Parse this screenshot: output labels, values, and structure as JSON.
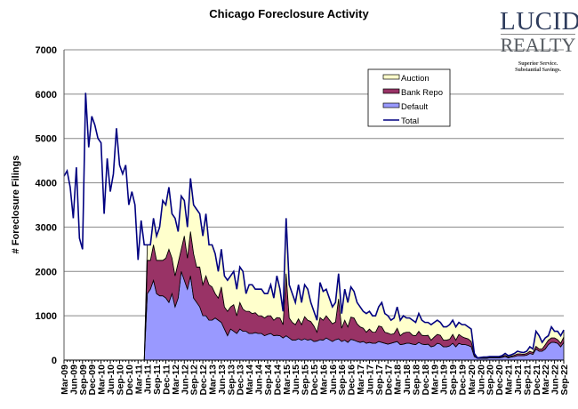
{
  "chart_data": {
    "type": "area",
    "stacked": true,
    "title": "Chicago Foreclosure Activity",
    "ylabel": "# Foreclosure Filings",
    "xlabel": "",
    "ylim": [
      0,
      7000
    ],
    "yticks": [
      0,
      1000,
      2000,
      3000,
      4000,
      5000,
      6000,
      7000
    ],
    "grid": true,
    "legend_position": "top-right",
    "x_tick_labels": [
      "Mar-09",
      "Jun-09",
      "Sep-09",
      "Dec-09",
      "Mar-10",
      "Jun-10",
      "Sep-10",
      "Dec-10",
      "Mar-11",
      "Jun-11",
      "Sep-11",
      "Dec-11",
      "Mar-12",
      "Jun-12",
      "Sep-12",
      "Dec-12",
      "Mar-13",
      "Jun-13",
      "Sep-13",
      "Dec-13",
      "Mar-14",
      "Jun-14",
      "Sep-14",
      "Dec-14",
      "Mar-15",
      "Jun-15",
      "Sep-15",
      "Dec-15",
      "Mar-16",
      "Jun-16",
      "Sep-16",
      "Dec-16",
      "Mar-17",
      "Jun-17",
      "Sep-17",
      "Dec-17",
      "Mar-18",
      "Jun-18",
      "Sep-18",
      "Dec-18",
      "Mar-19",
      "Jun-19",
      "Sep-19",
      "Dec-19",
      "Mar-20",
      "Jun-20",
      "Sep-20",
      "Dec-20",
      "Mar-21",
      "Jun-21",
      "Sep-21",
      "Dec-21",
      "Mar-22",
      "Jun-22",
      "Sep-22"
    ],
    "x": [
      "Mar-09",
      "Apr-09",
      "May-09",
      "Jun-09",
      "Jul-09",
      "Aug-09",
      "Sep-09",
      "Oct-09",
      "Nov-09",
      "Dec-09",
      "Jan-10",
      "Feb-10",
      "Mar-10",
      "Apr-10",
      "May-10",
      "Jun-10",
      "Jul-10",
      "Aug-10",
      "Sep-10",
      "Oct-10",
      "Nov-10",
      "Dec-10",
      "Jan-11",
      "Feb-11",
      "Mar-11",
      "Apr-11",
      "May-11",
      "Jun-11",
      "Jul-11",
      "Aug-11",
      "Sep-11",
      "Oct-11",
      "Nov-11",
      "Dec-11",
      "Jan-12",
      "Feb-12",
      "Mar-12",
      "Apr-12",
      "May-12",
      "Jun-12",
      "Jul-12",
      "Aug-12",
      "Sep-12",
      "Oct-12",
      "Nov-12",
      "Dec-12",
      "Jan-13",
      "Feb-13",
      "Mar-13",
      "Apr-13",
      "May-13",
      "Jun-13",
      "Jul-13",
      "Aug-13",
      "Sep-13",
      "Oct-13",
      "Nov-13",
      "Dec-13",
      "Jan-14",
      "Feb-14",
      "Mar-14",
      "Apr-14",
      "May-14",
      "Jun-14",
      "Jul-14",
      "Aug-14",
      "Sep-14",
      "Oct-14",
      "Nov-14",
      "Dec-14",
      "Jan-15",
      "Feb-15",
      "Mar-15",
      "Apr-15",
      "May-15",
      "Jun-15",
      "Jul-15",
      "Aug-15",
      "Sep-15",
      "Oct-15",
      "Nov-15",
      "Dec-15",
      "Jan-16",
      "Feb-16",
      "Mar-16",
      "Apr-16",
      "May-16",
      "Jun-16",
      "Jul-16",
      "Aug-16",
      "Sep-16",
      "Oct-16",
      "Nov-16",
      "Dec-16",
      "Jan-17",
      "Feb-17",
      "Mar-17",
      "Apr-17",
      "May-17",
      "Jun-17",
      "Jul-17",
      "Aug-17",
      "Sep-17",
      "Oct-17",
      "Nov-17",
      "Dec-17",
      "Jan-18",
      "Feb-18",
      "Mar-18",
      "Apr-18",
      "May-18",
      "Jun-18",
      "Jul-18",
      "Aug-18",
      "Sep-18",
      "Oct-18",
      "Nov-18",
      "Dec-18",
      "Jan-19",
      "Feb-19",
      "Mar-19",
      "Apr-19",
      "May-19",
      "Jun-19",
      "Jul-19",
      "Aug-19",
      "Sep-19",
      "Oct-19",
      "Nov-19",
      "Dec-19",
      "Jan-20",
      "Feb-20",
      "Mar-20",
      "Apr-20",
      "May-20",
      "Jun-20",
      "Jul-20",
      "Aug-20",
      "Sep-20",
      "Oct-20",
      "Nov-20",
      "Dec-20",
      "Jan-21",
      "Feb-21",
      "Mar-21",
      "Apr-21",
      "May-21",
      "Jun-21",
      "Jul-21",
      "Aug-21",
      "Sep-21",
      "Oct-21",
      "Nov-21",
      "Dec-21",
      "Jan-22",
      "Feb-22",
      "Mar-22",
      "Apr-22",
      "May-22",
      "Jun-22",
      "Jul-22",
      "Aug-22",
      "Sep-22"
    ],
    "series": [
      {
        "name": "Default",
        "kind": "area",
        "color": "#9999ff",
        "values": [
          0,
          0,
          0,
          0,
          0,
          0,
          0,
          0,
          0,
          0,
          0,
          0,
          0,
          0,
          0,
          0,
          0,
          0,
          0,
          0,
          0,
          0,
          0,
          0,
          0,
          0,
          0,
          1500,
          1600,
          1800,
          1500,
          1450,
          1450,
          1400,
          1300,
          1500,
          1200,
          1400,
          2000,
          1800,
          1600,
          1900,
          1400,
          1300,
          1200,
          1000,
          1000,
          900,
          900,
          950,
          900,
          850,
          700,
          550,
          700,
          650,
          600,
          700,
          650,
          650,
          600,
          600,
          620,
          600,
          600,
          550,
          580,
          600,
          550,
          560,
          550,
          500,
          550,
          500,
          450,
          450,
          480,
          450,
          480,
          450,
          470,
          420,
          430,
          460,
          450,
          500,
          460,
          420,
          460,
          480,
          420,
          450,
          400,
          470,
          450,
          420,
          400,
          420,
          380,
          400,
          380,
          380,
          420,
          400,
          380,
          360,
          380,
          400,
          420,
          350,
          360,
          380,
          380,
          360,
          350,
          400,
          360,
          350,
          360,
          300,
          320,
          380,
          360,
          300,
          300,
          320,
          380,
          300,
          380,
          350,
          350,
          330,
          300,
          80,
          40,
          40,
          40,
          40,
          50,
          50,
          50,
          50,
          60,
          80,
          50,
          70,
          80,
          100,
          100,
          100,
          110,
          150,
          130,
          250,
          200,
          200,
          250,
          350,
          400,
          400,
          380,
          300,
          400
        ]
      },
      {
        "name": "Bank Repo",
        "kind": "area",
        "color": "#993366",
        "values": [
          0,
          0,
          0,
          0,
          0,
          0,
          0,
          0,
          0,
          0,
          0,
          0,
          0,
          0,
          0,
          0,
          0,
          0,
          0,
          0,
          0,
          0,
          0,
          0,
          0,
          0,
          0,
          750,
          650,
          800,
          750,
          800,
          800,
          900,
          1200,
          800,
          700,
          800,
          500,
          1000,
          700,
          1000,
          1000,
          800,
          900,
          700,
          900,
          800,
          750,
          550,
          500,
          800,
          500,
          550,
          500,
          600,
          400,
          600,
          500,
          450,
          500,
          450,
          450,
          400,
          400,
          400,
          420,
          400,
          350,
          400,
          400,
          300,
          1400,
          450,
          400,
          350,
          450,
          350,
          500,
          450,
          400,
          350,
          200,
          500,
          450,
          500,
          450,
          400,
          400,
          900,
          300,
          450,
          350,
          500,
          500,
          400,
          350,
          300,
          250,
          300,
          250,
          250,
          350,
          350,
          250,
          250,
          200,
          200,
          300,
          200,
          250,
          250,
          250,
          200,
          200,
          250,
          200,
          200,
          200,
          150,
          200,
          200,
          200,
          150,
          150,
          150,
          200,
          150,
          200,
          180,
          150,
          150,
          120,
          40,
          5,
          10,
          15,
          15,
          15,
          15,
          15,
          15,
          20,
          30,
          20,
          20,
          30,
          40,
          40,
          30,
          40,
          50,
          40,
          60,
          50,
          50,
          100,
          100,
          100,
          100,
          80,
          80,
          120
        ]
      },
      {
        "name": "Auction",
        "kind": "area",
        "color": "#ffffcc",
        "values": [
          0,
          0,
          0,
          0,
          0,
          0,
          0,
          0,
          0,
          0,
          0,
          0,
          0,
          0,
          0,
          0,
          0,
          0,
          0,
          0,
          0,
          0,
          0,
          0,
          0,
          0,
          0,
          350,
          350,
          600,
          550,
          750,
          1350,
          1200,
          1400,
          1000,
          1300,
          700,
          1200,
          800,
          700,
          1200,
          1100,
          1300,
          1200,
          1100,
          1400,
          900,
          950,
          900,
          600,
          850,
          700,
          700,
          700,
          750,
          600,
          800,
          850,
          400,
          600,
          650,
          530,
          600,
          600,
          550,
          500,
          700,
          500,
          940,
          650,
          300,
          1250,
          750,
          650,
          500,
          770,
          500,
          720,
          700,
          430,
          330,
          270,
          790,
          650,
          600,
          490,
          380,
          440,
          570,
          330,
          700,
          550,
          680,
          600,
          480,
          450,
          380,
          420,
          400,
          370,
          370,
          430,
          550,
          420,
          390,
          320,
          350,
          480,
          350,
          390,
          320,
          320,
          340,
          300,
          400,
          340,
          300,
          290,
          350,
          330,
          320,
          290,
          300,
          300,
          330,
          320,
          300,
          270,
          270,
          300,
          270,
          280,
          30,
          5,
          10,
          15,
          15,
          15,
          15,
          15,
          15,
          20,
          40,
          30,
          30,
          40,
          60,
          40,
          40,
          50,
          100,
          80,
          340,
          300,
          150,
          150,
          100,
          250,
          150,
          190,
          170,
          160
        ]
      },
      {
        "name": "Total",
        "kind": "line",
        "color": "#000080",
        "values": [
          4150,
          4270,
          3900,
          3200,
          4350,
          2750,
          2500,
          6030,
          4800,
          5500,
          5300,
          5000,
          4900,
          3300,
          4550,
          3800,
          4200,
          5230,
          4400,
          4200,
          4400,
          3500,
          3800,
          3500,
          2260,
          3150,
          2600,
          2600,
          2600,
          3200,
          2800,
          3000,
          3600,
          3500,
          3900,
          3300,
          3200,
          2900,
          3700,
          3600,
          3000,
          4100,
          3500,
          3400,
          3300,
          2800,
          3300,
          2600,
          2600,
          2400,
          2000,
          2500,
          1900,
          1800,
          1900,
          2000,
          1600,
          2100,
          2000,
          1500,
          1700,
          1700,
          1600,
          1600,
          1600,
          1500,
          1500,
          1700,
          1400,
          1900,
          1600,
          1100,
          3200,
          1700,
          1500,
          1300,
          1700,
          1300,
          1700,
          1600,
          1300,
          1100,
          900,
          1750,
          1550,
          1600,
          1400,
          1200,
          1300,
          1950,
          1050,
          1600,
          1300,
          1650,
          1550,
          1300,
          1200,
          1100,
          1050,
          1100,
          1000,
          1000,
          1200,
          1300,
          1050,
          1000,
          900,
          950,
          1200,
          900,
          1000,
          950,
          950,
          900,
          850,
          1050,
          900,
          850,
          850,
          800,
          850,
          900,
          850,
          750,
          750,
          800,
          900,
          750,
          850,
          800,
          800,
          750,
          700,
          150,
          50,
          60,
          70,
          70,
          80,
          80,
          80,
          80,
          100,
          150,
          100,
          120,
          150,
          200,
          180,
          170,
          200,
          300,
          250,
          650,
          550,
          400,
          500,
          550,
          750,
          650,
          650,
          550,
          680
        ]
      }
    ]
  },
  "logo": {
    "line1": "LUCID",
    "line2": "REALTY",
    "tagline1": "Superior Service.",
    "tagline2": "Substantial Savings."
  }
}
